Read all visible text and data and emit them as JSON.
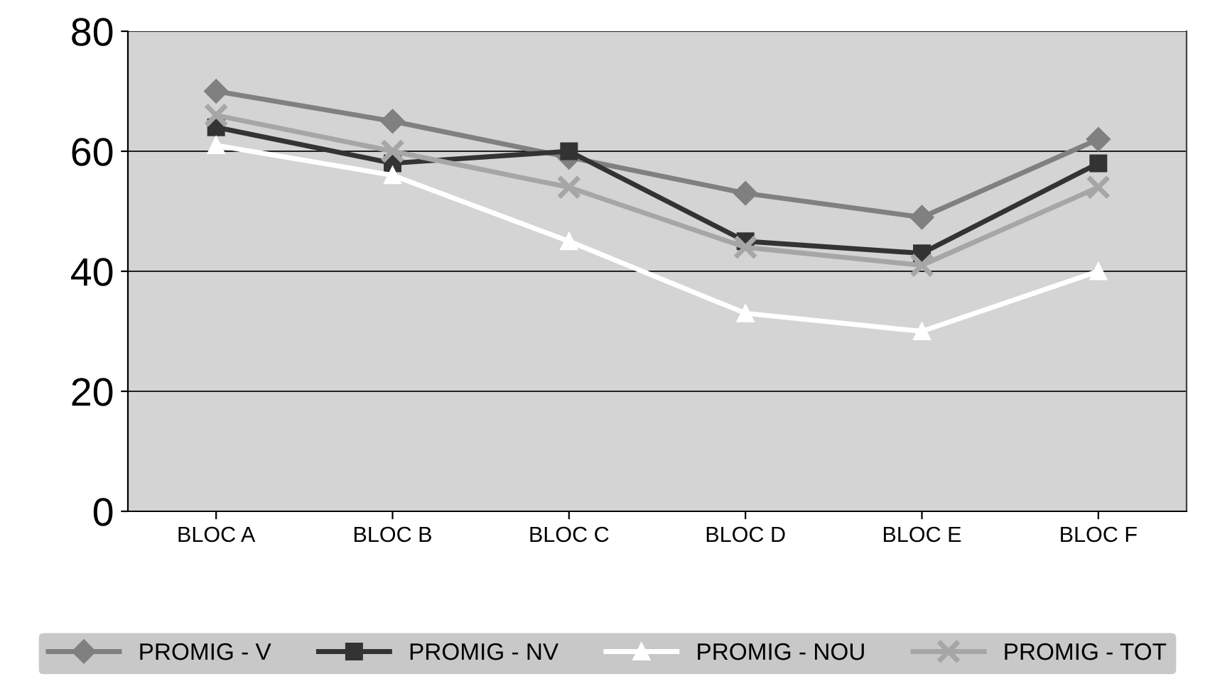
{
  "chart_data": {
    "type": "line",
    "categories": [
      "BLOC A",
      "BLOC B",
      "BLOC C",
      "BLOC D",
      "BLOC E",
      "BLOC F"
    ],
    "series": [
      {
        "name": "PROMIG - V",
        "color": "#808080",
        "marker": "diamond",
        "values": [
          70,
          65,
          59,
          53,
          49,
          62
        ]
      },
      {
        "name": "PROMIG - NV",
        "color": "#333333",
        "marker": "square",
        "values": [
          64,
          58,
          60,
          45,
          43,
          58
        ]
      },
      {
        "name": "PROMIG - NOU",
        "color": "#ffffff",
        "marker": "triangle",
        "values": [
          61,
          56,
          45,
          33,
          30,
          40
        ]
      },
      {
        "name": "PROMIG - TOT",
        "color": "#a6a6a6",
        "marker": "cross",
        "values": [
          66,
          60,
          54,
          44,
          41,
          54
        ]
      }
    ],
    "ylim": [
      0,
      80
    ],
    "yticks": [
      0,
      20,
      40,
      60,
      80
    ],
    "grid": "y",
    "legend": "bottom"
  }
}
